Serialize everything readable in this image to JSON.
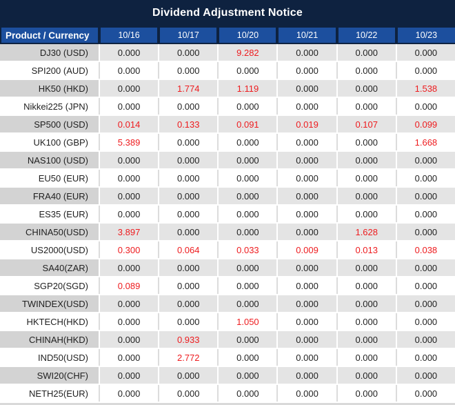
{
  "title": "Dividend Adjustment Notice",
  "colors": {
    "navy": "#0e2240",
    "header_blue": "#1c4f9e",
    "row_gray_label": "#d3d3d3",
    "row_gray_cell": "#e4e4e4",
    "white_row_separator": "#dcdcdc",
    "text_dark": "#1f1f1f",
    "value_red": "#ee1b1e",
    "bottom_strip": "#d9d9d9"
  },
  "table": {
    "header": {
      "product_label": "Product / Currency",
      "dates": [
        "10/16",
        "10/17",
        "10/20",
        "10/21",
        "10/22",
        "10/23"
      ]
    },
    "rows": [
      {
        "product": "DJ30 (USD)",
        "values": [
          "0.000",
          "0.000",
          "9.282",
          "0.000",
          "0.000",
          "0.000"
        ]
      },
      {
        "product": "SPI200 (AUD)",
        "values": [
          "0.000",
          "0.000",
          "0.000",
          "0.000",
          "0.000",
          "0.000"
        ]
      },
      {
        "product": "HK50 (HKD)",
        "values": [
          "0.000",
          "1.774",
          "1.119",
          "0.000",
          "0.000",
          "1.538"
        ]
      },
      {
        "product": "Nikkei225 (JPN)",
        "values": [
          "0.000",
          "0.000",
          "0.000",
          "0.000",
          "0.000",
          "0.000"
        ]
      },
      {
        "product": "SP500 (USD)",
        "values": [
          "0.014",
          "0.133",
          "0.091",
          "0.019",
          "0.107",
          "0.099"
        ]
      },
      {
        "product": "UK100 (GBP)",
        "values": [
          "5.389",
          "0.000",
          "0.000",
          "0.000",
          "0.000",
          "1.668"
        ]
      },
      {
        "product": "NAS100 (USD)",
        "values": [
          "0.000",
          "0.000",
          "0.000",
          "0.000",
          "0.000",
          "0.000"
        ]
      },
      {
        "product": "EU50 (EUR)",
        "values": [
          "0.000",
          "0.000",
          "0.000",
          "0.000",
          "0.000",
          "0.000"
        ]
      },
      {
        "product": "FRA40 (EUR)",
        "values": [
          "0.000",
          "0.000",
          "0.000",
          "0.000",
          "0.000",
          "0.000"
        ]
      },
      {
        "product": "ES35 (EUR)",
        "values": [
          "0.000",
          "0.000",
          "0.000",
          "0.000",
          "0.000",
          "0.000"
        ]
      },
      {
        "product": "CHINA50(USD)",
        "values": [
          "3.897",
          "0.000",
          "0.000",
          "0.000",
          "1.628",
          "0.000"
        ]
      },
      {
        "product": "US2000(USD)",
        "values": [
          "0.300",
          "0.064",
          "0.033",
          "0.009",
          "0.013",
          "0.038"
        ]
      },
      {
        "product": "SA40(ZAR)",
        "values": [
          "0.000",
          "0.000",
          "0.000",
          "0.000",
          "0.000",
          "0.000"
        ]
      },
      {
        "product": "SGP20(SGD)",
        "values": [
          "0.089",
          "0.000",
          "0.000",
          "0.000",
          "0.000",
          "0.000"
        ]
      },
      {
        "product": "TWINDEX(USD)",
        "values": [
          "0.000",
          "0.000",
          "0.000",
          "0.000",
          "0.000",
          "0.000"
        ]
      },
      {
        "product": "HKTECH(HKD)",
        "values": [
          "0.000",
          "0.000",
          "1.050",
          "0.000",
          "0.000",
          "0.000"
        ]
      },
      {
        "product": "CHINAH(HKD)",
        "values": [
          "0.000",
          "0.933",
          "0.000",
          "0.000",
          "0.000",
          "0.000"
        ]
      },
      {
        "product": "IND50(USD)",
        "values": [
          "0.000",
          "2.772",
          "0.000",
          "0.000",
          "0.000",
          "0.000"
        ]
      },
      {
        "product": "SWI20(CHF)",
        "values": [
          "0.000",
          "0.000",
          "0.000",
          "0.000",
          "0.000",
          "0.000"
        ]
      },
      {
        "product": "NETH25(EUR)",
        "values": [
          "0.000",
          "0.000",
          "0.000",
          "0.000",
          "0.000",
          "0.000"
        ]
      }
    ]
  }
}
